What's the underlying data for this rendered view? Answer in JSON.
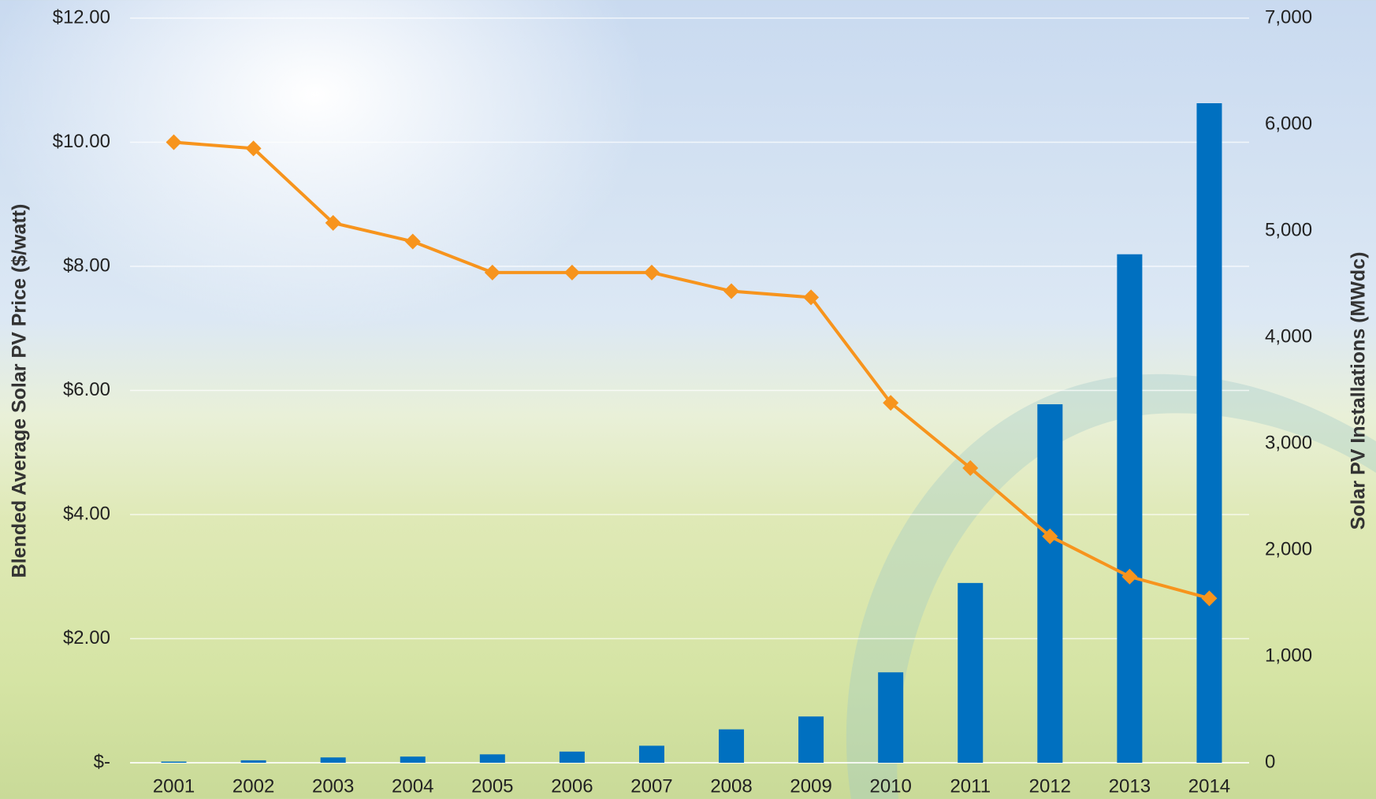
{
  "chart_data": {
    "type": "bar",
    "categories": [
      "2001",
      "2002",
      "2003",
      "2004",
      "2005",
      "2006",
      "2007",
      "2008",
      "2009",
      "2010",
      "2011",
      "2012",
      "2013",
      "2014"
    ],
    "y_label": "Blended Average Solar PV Price ($/watt)",
    "y2_label": "Solar PV Installations (MWdc)",
    "series": [
      {
        "type": "bar",
        "axis": "y2",
        "color": "#0070c0",
        "values": [
          11,
          23,
          50,
          58,
          79,
          105,
          160,
          314,
          435,
          850,
          1690,
          3370,
          4780,
          6200
        ]
      },
      {
        "type": "line",
        "color": "#f7941d",
        "values": [
          10.0,
          9.9,
          8.7,
          8.4,
          7.9,
          7.9,
          7.9,
          7.6,
          7.5,
          5.8,
          4.75,
          3.65,
          3.0,
          2.65
        ]
      }
    ],
    "ylim": [
      0,
      12
    ],
    "yticks": [
      {
        "value": 0,
        "label": "$-"
      },
      {
        "value": 2,
        "label": "$2.00"
      },
      {
        "value": 4,
        "label": "$4.00"
      },
      {
        "value": 6,
        "label": "$6.00"
      },
      {
        "value": 8,
        "label": "$8.00"
      },
      {
        "value": 10,
        "label": "$10.00"
      },
      {
        "value": 12,
        "label": "$12.00"
      }
    ],
    "y2lim": [
      0,
      7000
    ],
    "y2ticks": [
      0,
      {
        "value": 1000,
        "label": "1,000"
      },
      {
        "value": 2000,
        "label": "2,000"
      },
      {
        "value": 3000,
        "label": "3,000"
      },
      {
        "value": 4000,
        "label": "4,000"
      },
      {
        "value": 5000,
        "label": "5,000"
      },
      {
        "value": 6000,
        "label": "6,000"
      },
      {
        "value": 7000,
        "label": "7,000"
      }
    ],
    "grid": true
  }
}
